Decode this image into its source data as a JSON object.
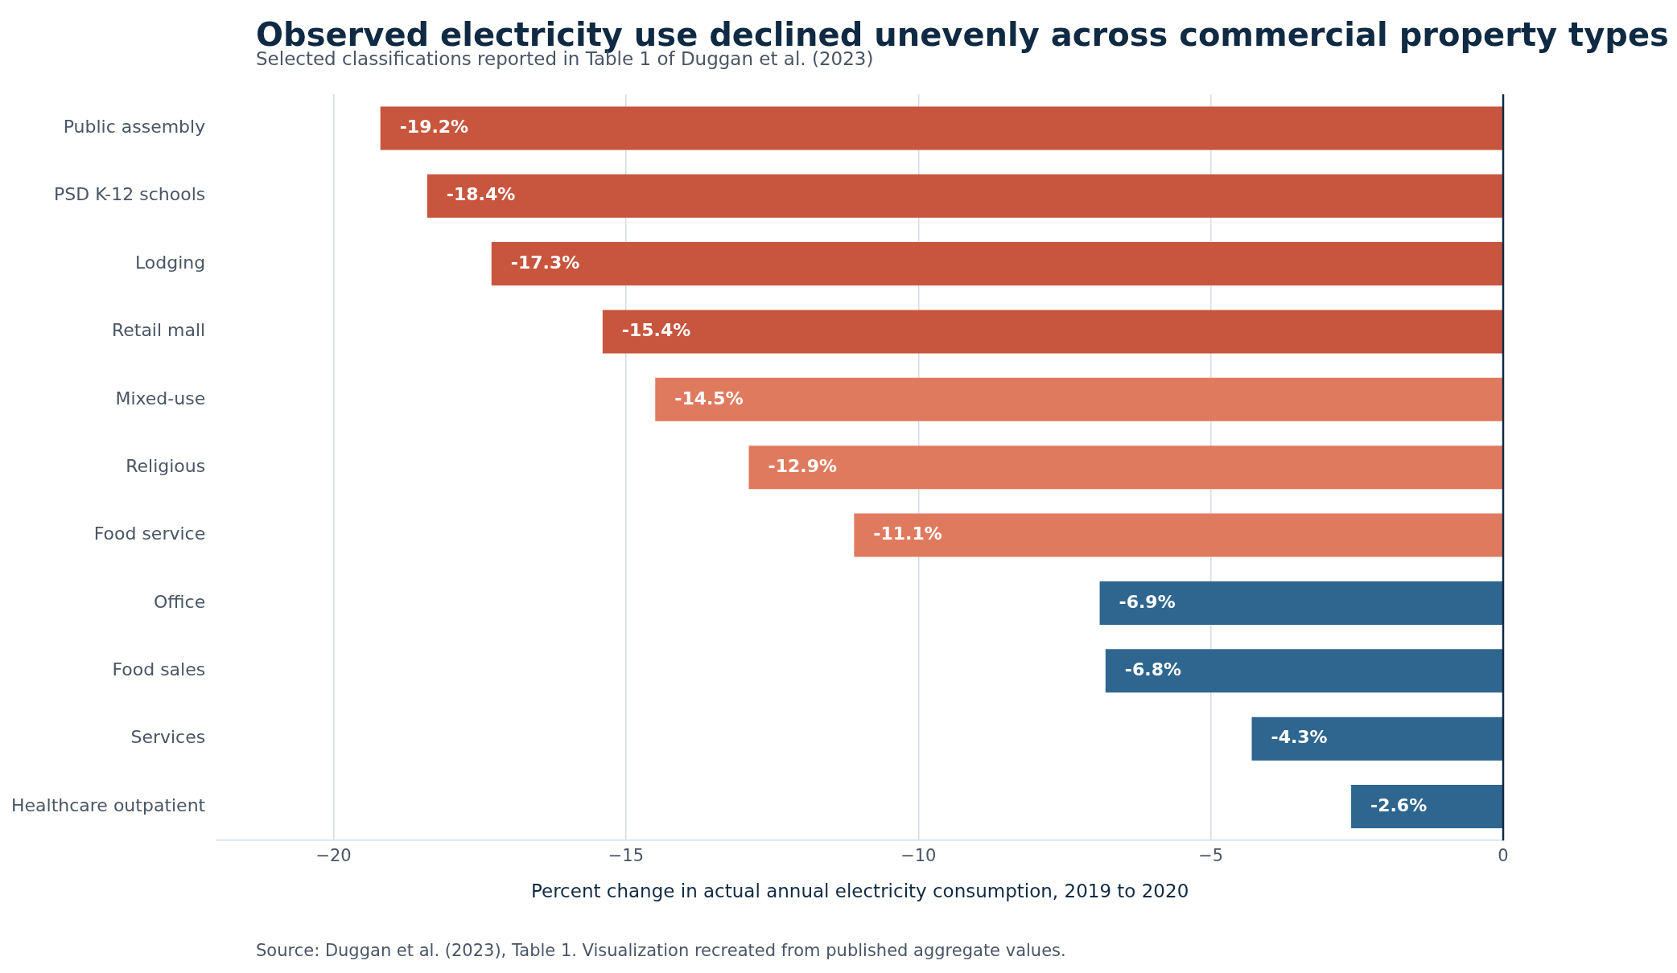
{
  "chart_data": {
    "type": "bar",
    "orientation": "horizontal",
    "title": "Observed electricity use declined unevenly across commercial property types",
    "subtitle": "Selected classifications reported in Table 1 of Duggan et al. (2023)",
    "xlabel": "Percent change in actual annual electricity consumption, 2019 to 2020",
    "categories": [
      "Public assembly",
      "PSD K-12 schools",
      "Lodging",
      "Retail mall",
      "Mixed-use",
      "Religious",
      "Food service",
      "Office",
      "Food sales",
      "Services",
      "Healthcare outpatient"
    ],
    "values": [
      -19.2,
      -18.4,
      -17.3,
      -15.4,
      -14.5,
      -12.9,
      -11.1,
      -6.9,
      -6.8,
      -4.3,
      -2.6
    ],
    "colors": [
      "#c8553d",
      "#c8553d",
      "#c8553d",
      "#c8553d",
      "#e07a5f",
      "#e07a5f",
      "#e07a5f",
      "#2e668f",
      "#2e668f",
      "#2e668f",
      "#2e668f"
    ],
    "value_labels": [
      "-19.2%",
      "-18.4%",
      "-17.3%",
      "-15.4%",
      "-14.5%",
      "-12.9%",
      "-11.1%",
      "-6.9%",
      "-6.8%",
      "-4.3%",
      "-2.6%"
    ],
    "xlim": [
      -22,
      0
    ],
    "xticks": [
      {
        "value": -20,
        "label": "−20"
      },
      {
        "value": -15,
        "label": "−15"
      },
      {
        "value": -10,
        "label": "−10"
      },
      {
        "value": -5,
        "label": "−5"
      },
      0
    ],
    "grid": "x",
    "legend": false,
    "ref_lines": [
      {
        "axis": "x",
        "value": 0,
        "color": "#102a43"
      }
    ],
    "annotations": [
      "Source: Duggan et al. (2023), Table 1. Visualization recreated from published aggregate values."
    ]
  }
}
